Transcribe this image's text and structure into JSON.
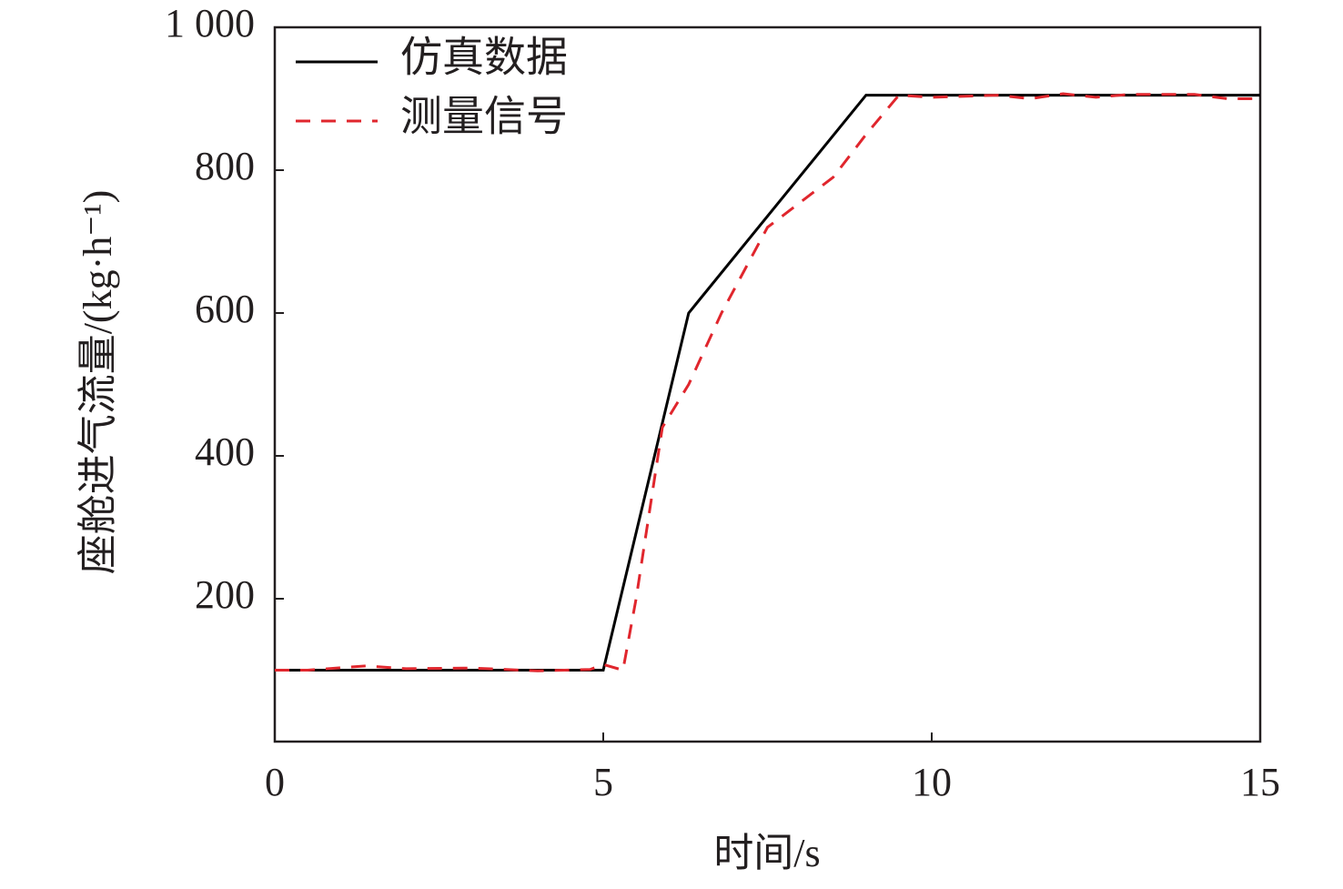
{
  "chart_data": {
    "type": "line",
    "x_label": "时间/s",
    "y_label": "座舱进气流量/(kg·h⁻¹)",
    "xlim": [
      0,
      15
    ],
    "xticks": [
      0,
      5,
      10,
      15
    ],
    "ylim": [
      0,
      1000
    ],
    "yticks": [
      200,
      400,
      600,
      800,
      {
        "value": 1000,
        "label": "1 000"
      }
    ],
    "legend": "upper left",
    "series": [
      {
        "name": "仿真数据",
        "color": "#000000",
        "style": "solid",
        "x": [
          0,
          5,
          6.3,
          9,
          15
        ],
        "values": [
          100,
          100,
          600,
          905,
          905
        ]
      },
      {
        "name": "测量信号",
        "color": "#e0262d",
        "style": "dashed",
        "x": [
          0,
          0.5,
          1.4,
          2,
          3,
          4,
          4.8,
          5,
          5.3,
          5.5,
          5.9,
          6.3,
          6.8,
          7.5,
          8.5,
          9,
          9.5,
          10,
          11,
          11.5,
          12,
          12.5,
          13,
          14,
          14.5,
          15
        ],
        "values": [
          100,
          100,
          106,
          102,
          103,
          99,
          101,
          108,
          100,
          200,
          440,
          500,
          600,
          720,
          790,
          850,
          905,
          902,
          905,
          900,
          907,
          902,
          906,
          906,
          900,
          900
        ]
      }
    ]
  }
}
